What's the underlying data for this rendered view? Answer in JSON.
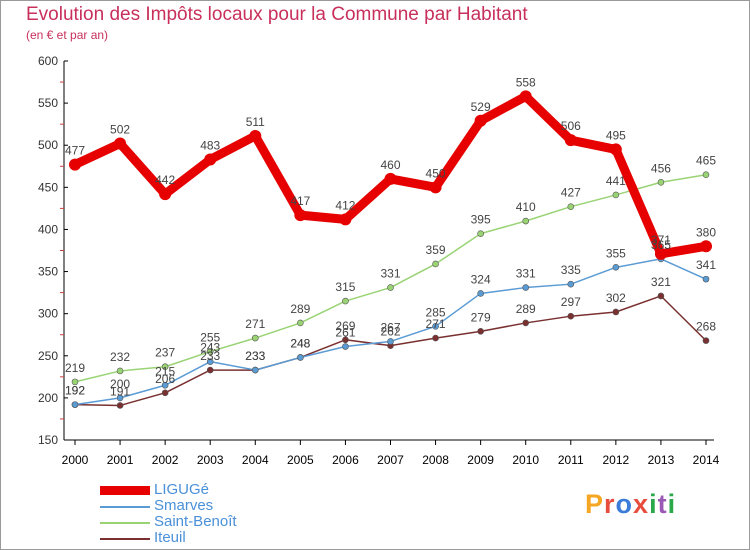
{
  "header": {
    "title": "Evolution des Impôts locaux pour la Commune par Habitant",
    "subtitle": "(en € et par an)"
  },
  "logo": {
    "text": "ProXiti",
    "letters": [
      "P",
      "r",
      "o",
      "x",
      "i",
      "t",
      "i"
    ],
    "colors": [
      "#f5a623",
      "#e74c3c",
      "#3b7dd8",
      "#e74c3c",
      "#2aa84a",
      "#9b59b6",
      "#2aa84a"
    ]
  },
  "chart_data": {
    "type": "line",
    "title": "Evolution des Impôts locaux pour la Commune par Habitant",
    "subtitle": "(en € et par an)",
    "x": [
      "2000",
      "2001",
      "2002",
      "2003",
      "2004",
      "2005",
      "2006",
      "2007",
      "2008",
      "2009",
      "2010",
      "2011",
      "2012",
      "2013",
      "2014"
    ],
    "ylim": [
      150,
      600
    ],
    "yticks": [
      150,
      200,
      250,
      300,
      350,
      400,
      450,
      500,
      550,
      600
    ],
    "grid": false,
    "legend": "bottom-left",
    "series": [
      {
        "name": "LIGUGé",
        "color": "#e60000",
        "values": [
          477,
          502,
          442,
          483,
          511,
          417,
          412,
          460,
          450,
          529,
          558,
          506,
          495,
          371,
          380
        ],
        "labels": [
          "477",
          "502",
          "442",
          "483",
          "511",
          "417",
          "412",
          "460",
          "450",
          "529",
          "558",
          "506",
          "495",
          "371",
          "380"
        ]
      },
      {
        "name": "Smarves",
        "color": "#5a9bd4",
        "values": [
          192,
          200,
          215,
          243,
          233,
          248,
          261,
          267,
          285,
          324,
          331,
          335,
          355,
          365,
          341
        ],
        "labels": [
          "192",
          "200",
          "215",
          "243",
          "233",
          "248",
          "261",
          "267",
          "285",
          "324",
          "331",
          "335",
          "355",
          "365",
          "341"
        ]
      },
      {
        "name": "Saint-Benoît",
        "color": "#99d374",
        "values": [
          219,
          232,
          237,
          255,
          271,
          289,
          315,
          331,
          359,
          395,
          410,
          427,
          441,
          456,
          465
        ],
        "labels": [
          "219",
          "232",
          "237",
          "255",
          "271",
          "289",
          "315",
          "331",
          "359",
          "395",
          "410",
          "427",
          "441",
          "456",
          "465"
        ]
      },
      {
        "name": "Iteuil",
        "color": "#7a3030",
        "values": [
          192,
          191,
          206,
          233,
          233,
          248,
          269,
          262,
          271,
          279,
          289,
          297,
          302,
          321,
          268
        ],
        "labels": [
          "192",
          "191",
          "206",
          "233",
          "233",
          "248",
          "269",
          "262",
          "271",
          "279",
          "289",
          "297",
          "302",
          "321",
          "268"
        ]
      }
    ]
  }
}
